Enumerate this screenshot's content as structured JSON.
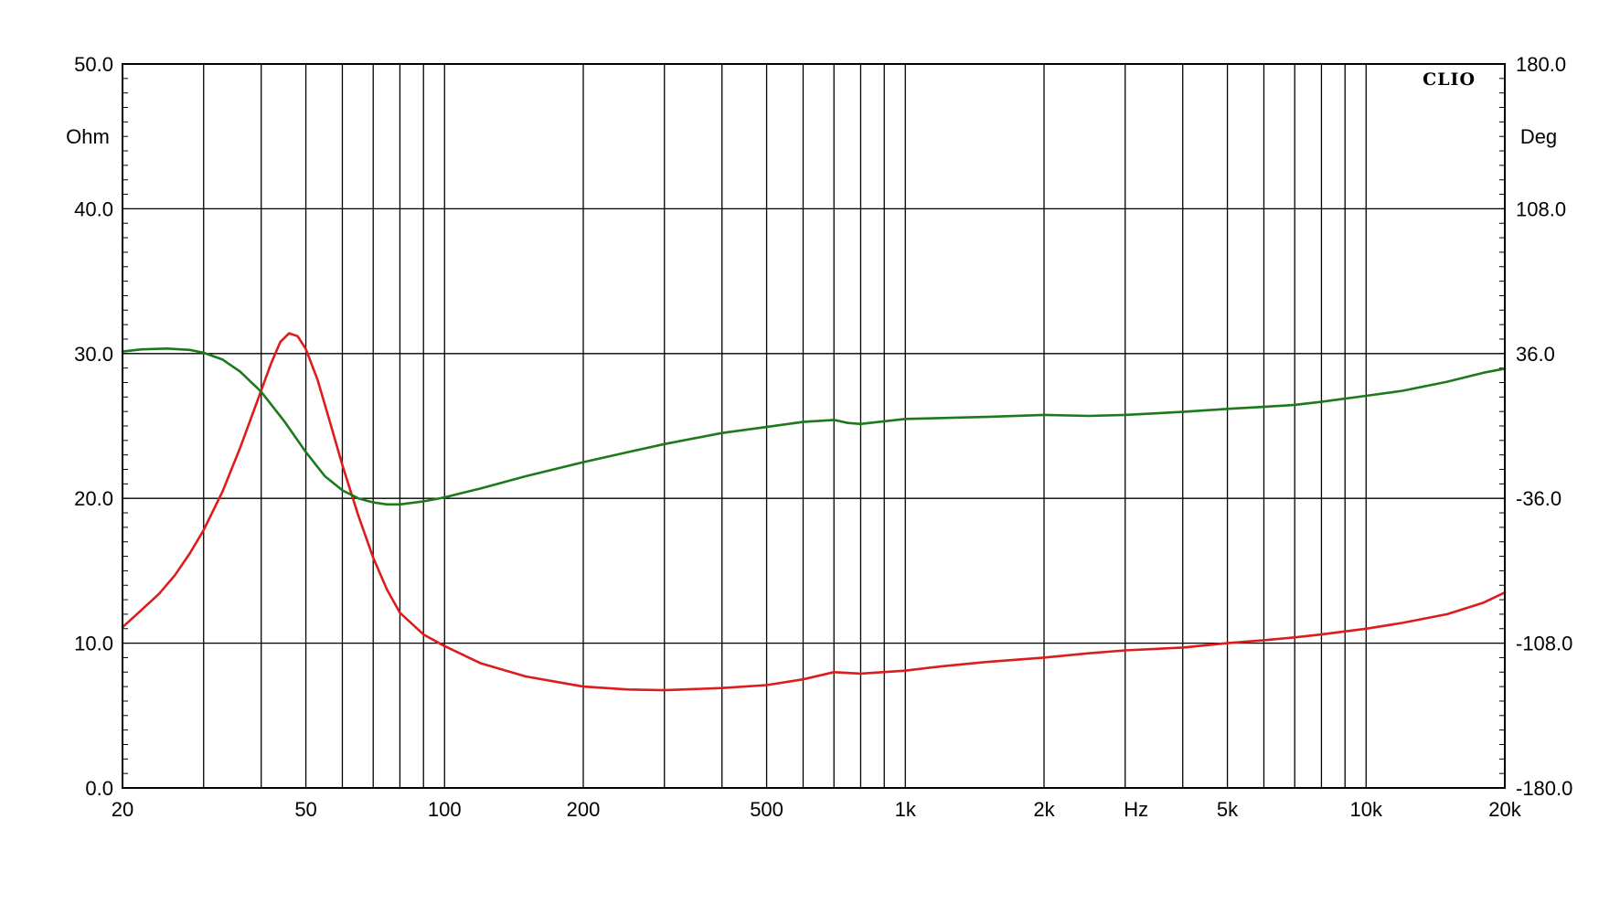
{
  "chart_data": {
    "type": "line",
    "brand": "CLIO",
    "x_unit_label": "Hz",
    "x_scale": "log",
    "xlim": [
      20,
      20000
    ],
    "x_tick_labels": [
      {
        "value": 20,
        "label": "20"
      },
      {
        "value": 50,
        "label": "50"
      },
      {
        "value": 100,
        "label": "100"
      },
      {
        "value": 200,
        "label": "200"
      },
      {
        "value": 500,
        "label": "500"
      },
      {
        "value": 1000,
        "label": "1k"
      },
      {
        "value": 2000,
        "label": "2k"
      },
      {
        "value": 5000,
        "label": "5k"
      },
      {
        "value": 10000,
        "label": "10k"
      },
      {
        "value": 20000,
        "label": "20k"
      }
    ],
    "x_minor_gridlines": [
      30,
      40,
      60,
      70,
      80,
      90,
      300,
      400,
      600,
      700,
      800,
      900,
      3000,
      4000,
      6000,
      7000,
      8000,
      9000
    ],
    "y_left": {
      "unit_label": "Ohm",
      "ylim": [
        0,
        50
      ],
      "tick_labels": [
        "0.0",
        "10.0",
        "20.0",
        "30.0",
        "40.0",
        "50.0"
      ]
    },
    "y_right": {
      "unit_label": "Deg",
      "ylim": [
        -180,
        180
      ],
      "tick_labels": [
        "-180.0",
        "-108.0",
        "-36.0",
        "36.0",
        "108.0",
        "180.0"
      ]
    },
    "grid": true,
    "series": [
      {
        "axis": "left",
        "color": "#dd1c1c",
        "points": [
          [
            20,
            11.1
          ],
          [
            22,
            12.3
          ],
          [
            24,
            13.4
          ],
          [
            26,
            14.7
          ],
          [
            28,
            16.2
          ],
          [
            30,
            17.8
          ],
          [
            33,
            20.5
          ],
          [
            36,
            23.5
          ],
          [
            39,
            26.5
          ],
          [
            42,
            29.3
          ],
          [
            44,
            30.8
          ],
          [
            46,
            31.4
          ],
          [
            48,
            31.2
          ],
          [
            50,
            30.3
          ],
          [
            53,
            28.2
          ],
          [
            56,
            25.6
          ],
          [
            60,
            22.3
          ],
          [
            65,
            18.8
          ],
          [
            70,
            15.9
          ],
          [
            75,
            13.7
          ],
          [
            80,
            12.1
          ],
          [
            90,
            10.6
          ],
          [
            100,
            9.8
          ],
          [
            120,
            8.6
          ],
          [
            150,
            7.7
          ],
          [
            200,
            7.0
          ],
          [
            250,
            6.8
          ],
          [
            300,
            6.75
          ],
          [
            400,
            6.9
          ],
          [
            500,
            7.1
          ],
          [
            600,
            7.5
          ],
          [
            700,
            8.0
          ],
          [
            800,
            7.9
          ],
          [
            1000,
            8.1
          ],
          [
            1200,
            8.4
          ],
          [
            1500,
            8.7
          ],
          [
            2000,
            9.0
          ],
          [
            2500,
            9.3
          ],
          [
            3000,
            9.5
          ],
          [
            4000,
            9.7
          ],
          [
            5000,
            10.0
          ],
          [
            6000,
            10.2
          ],
          [
            7000,
            10.4
          ],
          [
            8000,
            10.6
          ],
          [
            10000,
            11.0
          ],
          [
            12000,
            11.4
          ],
          [
            15000,
            12.0
          ],
          [
            18000,
            12.8
          ],
          [
            20000,
            13.5
          ]
        ]
      },
      {
        "axis": "right",
        "color": "#1c7a1c",
        "points": [
          [
            20,
            37.0
          ],
          [
            22,
            38.1
          ],
          [
            25,
            38.5
          ],
          [
            28,
            37.8
          ],
          [
            30,
            36.4
          ],
          [
            33,
            33.0
          ],
          [
            36,
            27.0
          ],
          [
            40,
            17.0
          ],
          [
            45,
            2.0
          ],
          [
            50,
            -13.0
          ],
          [
            55,
            -25.0
          ],
          [
            60,
            -32.0
          ],
          [
            65,
            -36.0
          ],
          [
            70,
            -38.0
          ],
          [
            75,
            -39.0
          ],
          [
            80,
            -39.0
          ],
          [
            90,
            -37.5
          ],
          [
            100,
            -35.5
          ],
          [
            120,
            -31.0
          ],
          [
            150,
            -25.0
          ],
          [
            200,
            -18.0
          ],
          [
            250,
            -13.0
          ],
          [
            300,
            -9.0
          ],
          [
            400,
            -3.5
          ],
          [
            500,
            -0.5
          ],
          [
            600,
            2.0
          ],
          [
            700,
            3.0
          ],
          [
            750,
            1.5
          ],
          [
            800,
            1.0
          ],
          [
            1000,
            3.5
          ],
          [
            1500,
            4.5
          ],
          [
            2000,
            5.5
          ],
          [
            2500,
            5.0
          ],
          [
            3000,
            5.5
          ],
          [
            4000,
            7.0
          ],
          [
            5000,
            8.5
          ],
          [
            6000,
            9.5
          ],
          [
            7000,
            10.5
          ],
          [
            8000,
            12.0
          ],
          [
            10000,
            15.0
          ],
          [
            12000,
            17.5
          ],
          [
            15000,
            22.0
          ],
          [
            18000,
            26.5
          ],
          [
            20000,
            28.5
          ]
        ]
      }
    ]
  }
}
